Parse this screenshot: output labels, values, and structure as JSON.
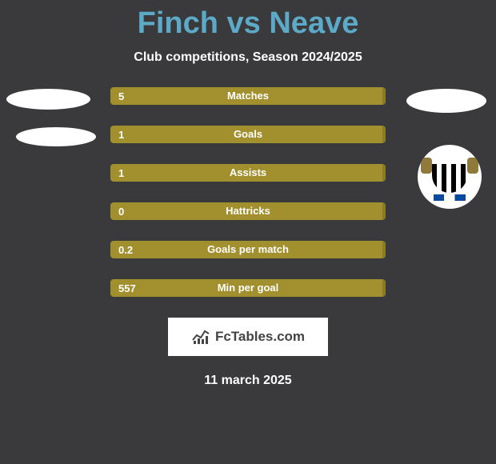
{
  "title": "Finch vs Neave",
  "subtitle": "Club competitions, Season 2024/2025",
  "colors": {
    "accent": "#a28f2d",
    "accent_dark": "#8c7c26",
    "title": "#5ca9c8",
    "text": "#ffffff",
    "bg": "#3a3a3c"
  },
  "stats": [
    {
      "label": "Matches",
      "player1": "5",
      "ratio": 1.0
    },
    {
      "label": "Goals",
      "player1": "1",
      "ratio": 1.0
    },
    {
      "label": "Assists",
      "player1": "1",
      "ratio": 1.0
    },
    {
      "label": "Hattricks",
      "player1": "0",
      "ratio": 1.0
    },
    {
      "label": "Goals per match",
      "player1": "0.2",
      "ratio": 1.0
    },
    {
      "label": "Min per goal",
      "player1": "557",
      "ratio": 1.0
    }
  ],
  "footer_brand": "FcTables.com",
  "date": "11 march 2025"
}
